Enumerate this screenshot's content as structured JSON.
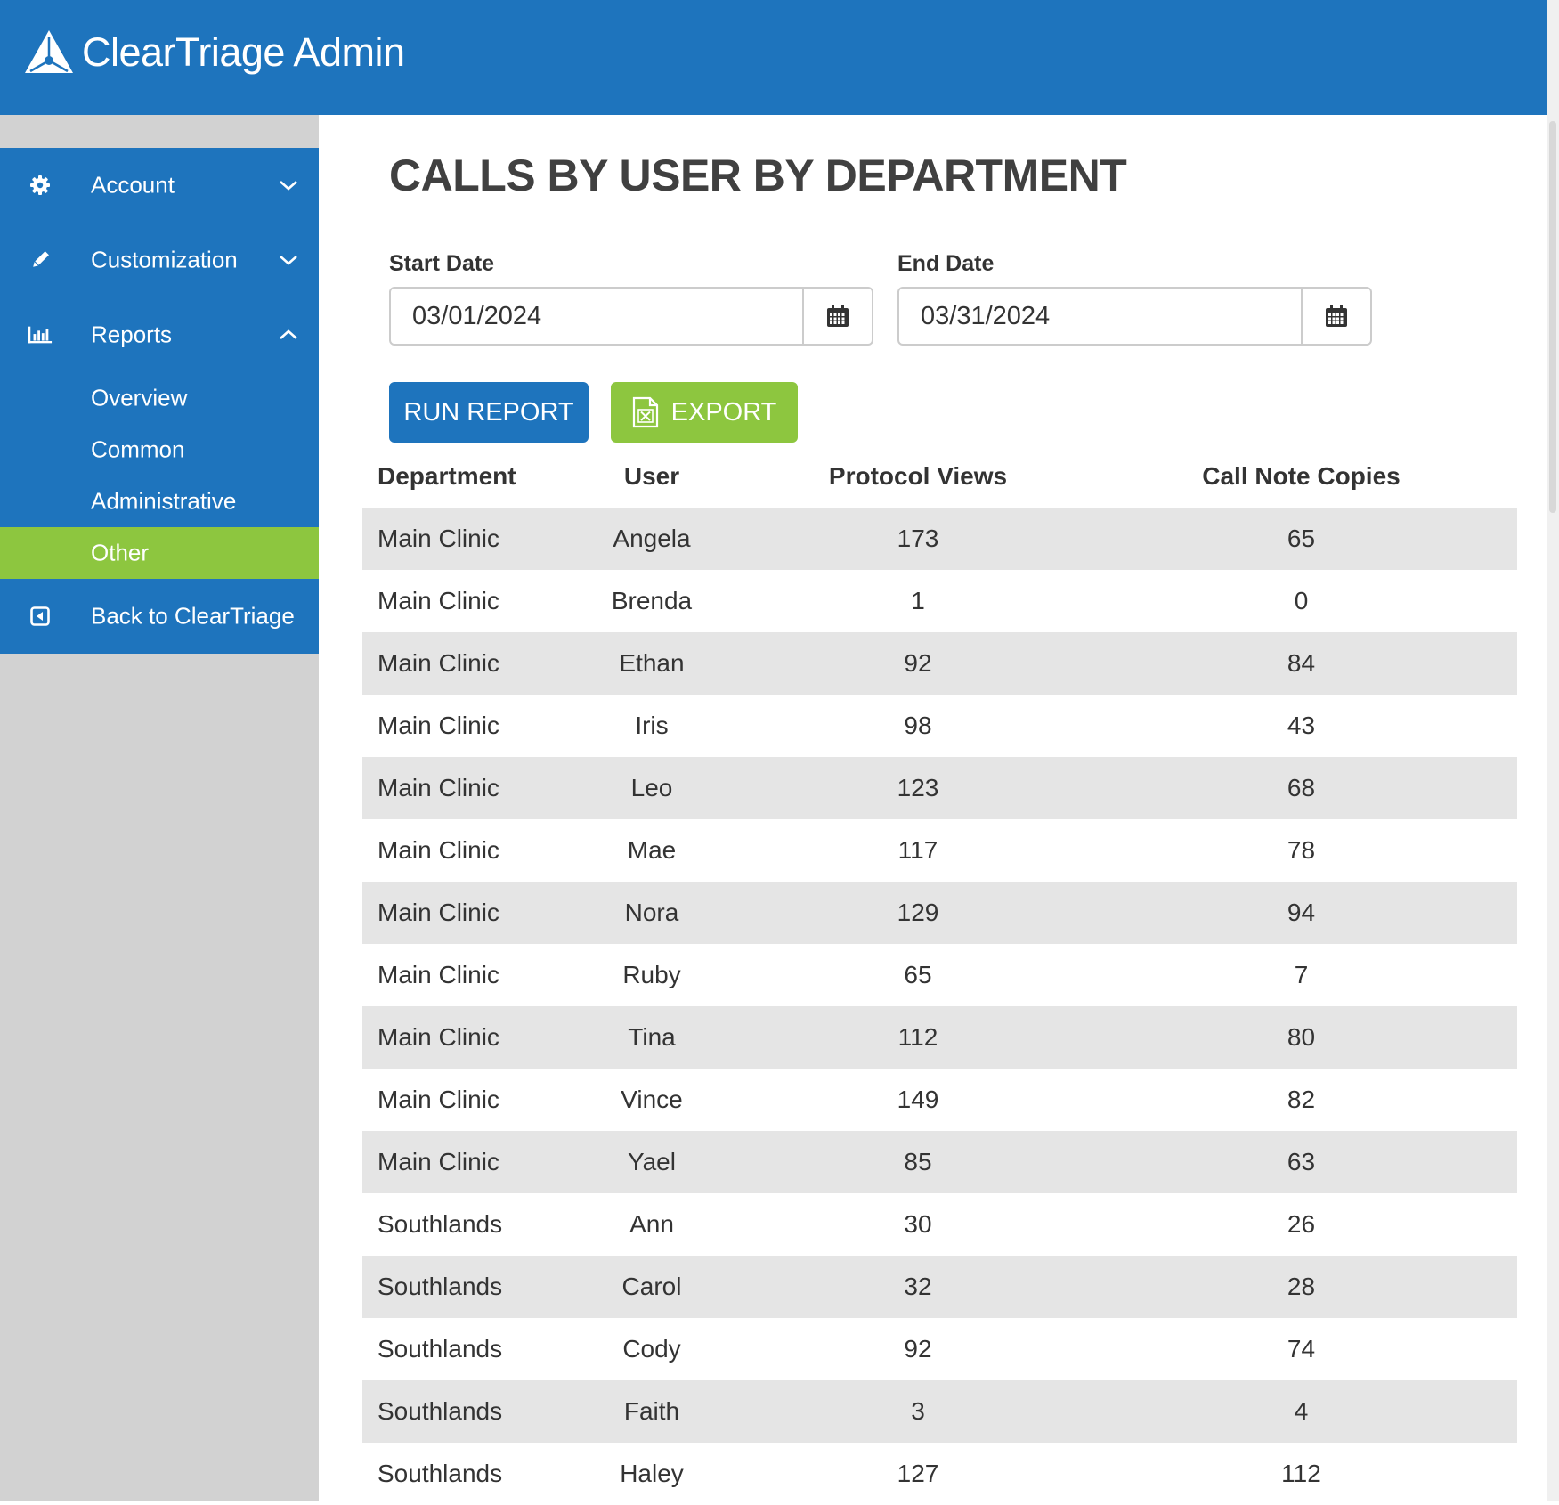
{
  "app": {
    "title": "ClearTriage Admin"
  },
  "sidebar": {
    "items": [
      {
        "label": "Account",
        "icon": "gear-icon",
        "expanded": false
      },
      {
        "label": "Customization",
        "icon": "pencil-icon",
        "expanded": false
      },
      {
        "label": "Reports",
        "icon": "bar-chart-icon",
        "expanded": true
      }
    ],
    "report_subitems": [
      {
        "label": "Overview",
        "active": false
      },
      {
        "label": "Common",
        "active": false
      },
      {
        "label": "Administrative",
        "active": false
      },
      {
        "label": "Other",
        "active": true
      }
    ],
    "back": {
      "label": "Back to ClearTriage",
      "icon": "back-arrow-icon"
    }
  },
  "main": {
    "title": "CALLS BY USER BY DEPARTMENT",
    "start_date": {
      "label": "Start Date",
      "value": "03/01/2024"
    },
    "end_date": {
      "label": "End Date",
      "value": "03/31/2024"
    },
    "run_label": "RUN REPORT",
    "export_label": "EXPORT"
  },
  "table": {
    "columns": [
      "Department",
      "User",
      "Protocol Views",
      "Call Note Copies"
    ],
    "rows": [
      [
        "Main Clinic",
        "Angela",
        "173",
        "65"
      ],
      [
        "Main Clinic",
        "Brenda",
        "1",
        "0"
      ],
      [
        "Main Clinic",
        "Ethan",
        "92",
        "84"
      ],
      [
        "Main Clinic",
        "Iris",
        "98",
        "43"
      ],
      [
        "Main Clinic",
        "Leo",
        "123",
        "68"
      ],
      [
        "Main Clinic",
        "Mae",
        "117",
        "78"
      ],
      [
        "Main Clinic",
        "Nora",
        "129",
        "94"
      ],
      [
        "Main Clinic",
        "Ruby",
        "65",
        "7"
      ],
      [
        "Main Clinic",
        "Tina",
        "112",
        "80"
      ],
      [
        "Main Clinic",
        "Vince",
        "149",
        "82"
      ],
      [
        "Main Clinic",
        "Yael",
        "85",
        "63"
      ],
      [
        "Southlands",
        "Ann",
        "30",
        "26"
      ],
      [
        "Southlands",
        "Carol",
        "32",
        "28"
      ],
      [
        "Southlands",
        "Cody",
        "92",
        "74"
      ],
      [
        "Southlands",
        "Faith",
        "3",
        "4"
      ],
      [
        "Southlands",
        "Haley",
        "127",
        "112"
      ]
    ]
  },
  "colors": {
    "brand_blue": "#1e74bd",
    "accent_green": "#8dc63f",
    "sidebar_gray": "#d2d2d2",
    "row_stripe": "#e5e5e5"
  }
}
